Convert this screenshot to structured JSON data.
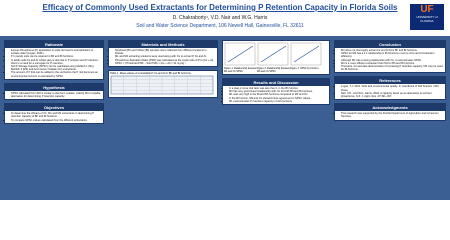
{
  "header": {
    "title": "Efficacy of Commonly Used Extractants for Determining P Retention Capacity in Florida Soils",
    "authors": "D. Chakraborty¹, V.D. Nair and W.G. Harris",
    "affiliation": "Soil and Water Science Department, 106 Newell Hall, Gainesville, FL 32611",
    "logo": "UF",
    "logo_sub": "UNIVERSITY of FLORIDA"
  },
  "sections": [
    {
      "heading": "Rationale",
      "bullets": [
        "Excess Phosphorus (P) application in soils can lead to eutrophication of surface water (Logan, 2001).",
        "P in sandy soils can be retained in Bh and Bt horizons.",
        "In acidic soils Fe and Al oxides play a vital role in P sorption and P retention; there is a need for a surrogate for P retention.",
        "Soil P Storage Capacity (SPSC) can be calculated using Mehlich 1 (M1), Mehlich 3 (M3) and Ammonium Oxalate (Ox) extractants.",
        "The amount of P that can be added to the soil before the P risk becomes an environmental concern is estimated by SPSC."
      ]
    },
    {
      "heading": "Hypothesis",
      "bullets": [
        "SPSC calculated from M3 is similar to that from oxalate, making M3 a suitable alternative for determining P retention capacity."
      ]
    },
    {
      "heading": "Objectives",
      "bullets": [
        "To determine the efficacy of Ox, M1 and M3 extractants in determining P retention capacity of Bh and Bt horizons.",
        "To compare SPSC values calculated from the different extractants."
      ]
    },
    {
      "heading": "Materials and Methods",
      "bullets": [
        "Spodosol (Bh) and Ultisol (Bt) samples were collected from different locations in Florida.",
        "M1 and M3 extracting solutions were used along with Ox to extract P, Fe and Al.",
        "Phosphorus Saturation Ratio (PSR) was calculated as the molar ratio of P to (Fe + Al).",
        "SPSC = (Threshold PSR − Soil PSR) × (Fe + Al) × 31 mg kg⁻¹"
      ]
    },
    {
      "heading": "Results and Discussion",
      "bullets": [
        "In a plaq-p move trial ratio was less than 1 in the Bh horizon.",
        "M3 has very good linear relationship with Ox for both Bh and Bt horizons.",
        "M1 was very high in the Bt and Bh horizons compared to M3 and Ox.",
        "In the Bt horizon, M3 and Ox showed close agreement in SPSC values.",
        "M1 overestimates P retention capacity in both horizons."
      ]
    },
    {
      "heading": "Conclusion",
      "bullets": [
        "M3 does not thoroughly extract Fe and Al from Bh and Bt horizons.",
        "SPSC for M3 has a 1:1 relationship in Bt horizons in terms of Fe and Al extraction efficiency.",
        "Although M1 has a strong relationship with Ox, it overestimates SPSC.",
        "M3 is a more efficient extractant than M1 for Bh and Bt horizons.",
        "Therefore, for accurate determination of remaining P retention capacity, M3 may be used for Bt horizons."
      ]
    },
    {
      "heading": "References",
      "bullets": [
        "Logan, T.J. 2001. Soils and environmental quality. In: Handbook of Soil Science. CRC Press.",
        "Nair, V.D., and W.G. Harris. 2004. A capacity factor as an alternative to soil test phosphorus. N.Z. J. Agric. Res. 47:491–497."
      ]
    },
    {
      "heading": "Acknowledgments",
      "bullets": [
        "This research was supported by the Florida Department of Agriculture and Consumer Services."
      ]
    }
  ],
  "table": {
    "caption": "Table 1. Mean values of extractable P, Fe and Al in Bh and Bt horizons"
  },
  "figures": [
    "Figure 1. Relationship between M1 and Ox SPSC",
    "Figure 2. Relationship between M3 and Ox SPSC",
    "Figure 3. SPSC by horizon"
  ]
}
